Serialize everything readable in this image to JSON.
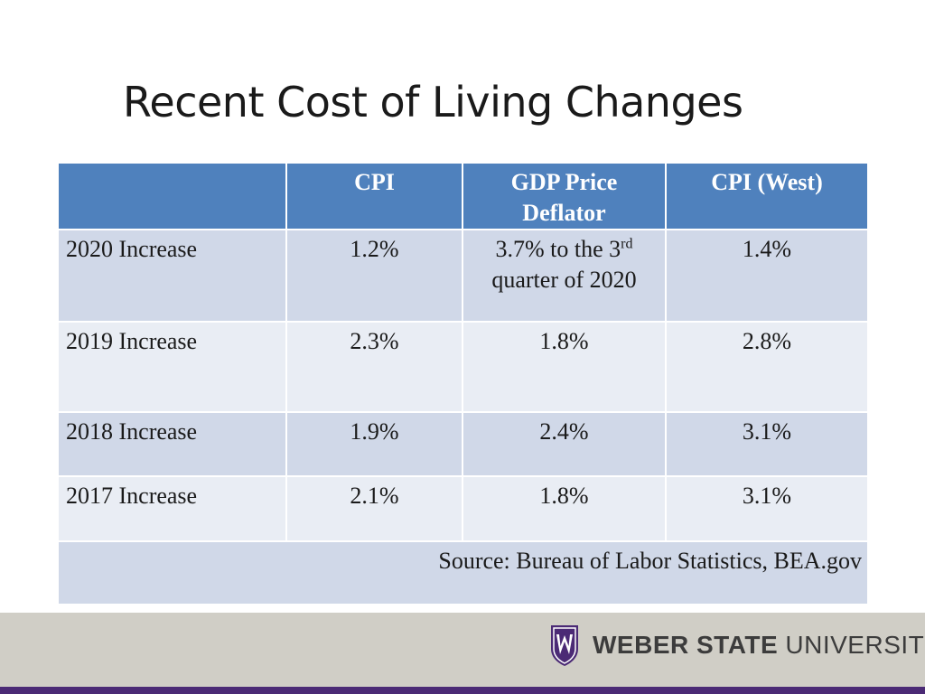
{
  "title": "Recent Cost of Living Changes",
  "table": {
    "headers": [
      "",
      "CPI",
      "GDP Price Deflator",
      "CPI (West)"
    ],
    "rows": [
      {
        "label": "2020 Increase",
        "cpi": "1.2%",
        "gdp_main": "3.7% to the 3",
        "gdp_sup": "rd",
        "gdp_line2": "quarter of 2020",
        "cpi_west": "1.4%"
      },
      {
        "label": "2019 Increase",
        "cpi": "2.3%",
        "gdp": "1.8%",
        "cpi_west": "2.8%"
      },
      {
        "label": "2018 Increase",
        "cpi": "1.9%",
        "gdp": "2.4%",
        "cpi_west": "3.1%"
      },
      {
        "label": "2017 Increase",
        "cpi": "2.1%",
        "gdp": "1.8%",
        "cpi_west": "3.1%"
      }
    ],
    "source": "Source:  Bureau of Labor Statistics, BEA.gov"
  },
  "footer": {
    "logo_bold": "WEBER STATE",
    "logo_regular": " UNIVERSITY"
  },
  "colors": {
    "header_blue": "#4f81bd",
    "row_dark": "#d0d8e8",
    "row_light": "#e9edf4",
    "footer_gray": "#d0cec6",
    "brand_purple": "#4b2a75"
  }
}
